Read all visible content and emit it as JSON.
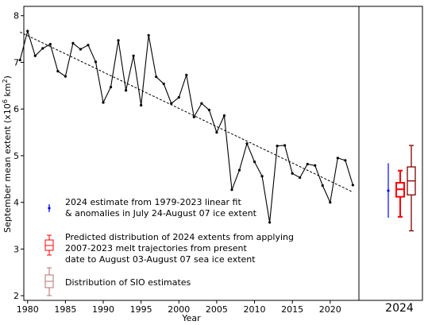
{
  "chart_data": {
    "type": "line",
    "xlabel": "Year",
    "ylabel": "September mean extent (x10",
    "ylabel_sup": "6",
    "ylabel_tail": " km",
    "ylabel_sup2": "2",
    "ylabel_end": ")",
    "xlim": [
      1979.5,
      2023.8
    ],
    "ylim": [
      1.9,
      8.2
    ],
    "xticks": [
      1980,
      1985,
      1990,
      1995,
      2000,
      2005,
      2010,
      2015,
      2020
    ],
    "yticks": [
      2,
      3,
      4,
      5,
      6,
      7,
      8
    ],
    "grid": false,
    "legend_position": "bottom-left",
    "x": [
      1979,
      1980,
      1981,
      1982,
      1983,
      1984,
      1985,
      1986,
      1987,
      1988,
      1989,
      1990,
      1991,
      1992,
      1993,
      1994,
      1995,
      1996,
      1997,
      1998,
      1999,
      2000,
      2001,
      2002,
      2003,
      2004,
      2005,
      2006,
      2007,
      2008,
      2009,
      2010,
      2011,
      2012,
      2013,
      2014,
      2015,
      2016,
      2017,
      2018,
      2019,
      2020,
      2021,
      2022,
      2023
    ],
    "series": [
      {
        "values": [
          7.05,
          7.67,
          7.14,
          7.3,
          7.39,
          6.81,
          6.7,
          7.41,
          7.28,
          7.37,
          7.01,
          6.14,
          6.47,
          7.47,
          6.4,
          7.14,
          6.08,
          7.58,
          6.69,
          6.54,
          6.12,
          6.25,
          6.73,
          5.83,
          6.12,
          5.98,
          5.5,
          5.86,
          4.27,
          4.69,
          5.26,
          4.87,
          4.56,
          3.57,
          5.21,
          5.22,
          4.62,
          4.53,
          4.82,
          4.79,
          4.36,
          4.0,
          4.95,
          4.9,
          4.37
        ]
      }
    ],
    "trend": {
      "x": [
        1979,
        2023
      ],
      "y": [
        7.65,
        4.22
      ]
    },
    "legend": [
      {
        "marker": "point",
        "color": "#0000ff",
        "lines": [
          "2024 estimate from 1979-2023 linear fit",
          "& anomalies in July 24-August 07 ice extent"
        ]
      },
      {
        "marker": "box",
        "color": "#ff0000",
        "lines": [
          "Predicted distribution of 2024 extents from applying",
          "2007-2023 melt trajectories from present",
          "date to August 03-August 07 sea ice extent"
        ]
      },
      {
        "marker": "box",
        "color": "#800000",
        "lines": [
          "Distribution of SIO estimates"
        ]
      }
    ],
    "side_panel": {
      "label": "2024",
      "point_estimate": {
        "value": 4.25,
        "low": 3.67,
        "high": 4.84,
        "color": "#0000ff"
      },
      "predicted_box": {
        "whisker_low": 3.69,
        "q1": 4.12,
        "median": 4.28,
        "q3": 4.42,
        "whisker_high": 4.68,
        "color": "#ff0000"
      },
      "sio_box": {
        "whisker_low": 3.39,
        "q1": 4.16,
        "median": 4.46,
        "q3": 4.76,
        "whisker_high": 5.22,
        "color": "#800000"
      }
    }
  }
}
